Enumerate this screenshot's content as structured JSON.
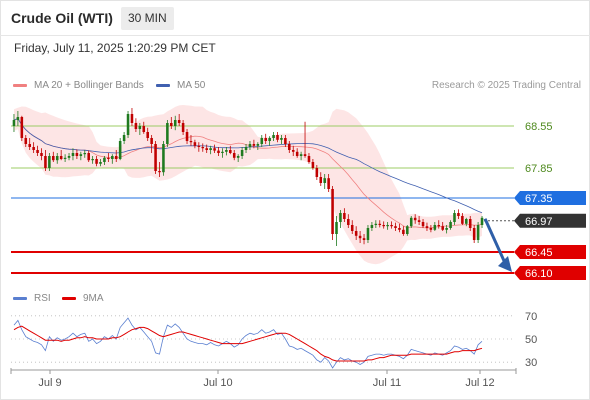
{
  "header": {
    "title": "Crude Oil (WTI)",
    "timeframe": "30 MIN"
  },
  "date_label": "Friday, July 11, 2025 1:20:29 PM CET",
  "legend": {
    "ma20": "MA 20 + Bollinger Bands",
    "ma50": "MA 50",
    "copyright": "Research © 2025 Trading Central"
  },
  "rsi_legend": {
    "rsi": "RSI",
    "ma9": "9MA"
  },
  "colors": {
    "up": "#1f7a1f",
    "down": "#c00000",
    "ma20": "#f08080",
    "ma50": "#4060b0",
    "band": "#fde0e0",
    "level_blue": "#1f6fe0",
    "level_red": "#e00000",
    "level_green": "#9ccc65",
    "current": "#333333"
  },
  "chart_data": [
    {
      "type": "candlestick",
      "title": "Crude Oil (WTI)",
      "interval": "30 MIN",
      "ylim": [
        65.95,
        69.05
      ],
      "x_ticks": [
        "Jul 9",
        "Jul 10",
        "Jul 11",
        "Jul 12"
      ],
      "levels": [
        {
          "value": 68.55,
          "label": "68.55",
          "style": "resistance-green"
        },
        {
          "value": 67.85,
          "label": "67.85",
          "style": "resistance-green"
        },
        {
          "value": 67.35,
          "label": "67.35",
          "style": "pivot-blue"
        },
        {
          "value": 66.45,
          "label": "66.45",
          "style": "support-red"
        },
        {
          "value": 66.1,
          "label": "66.10",
          "style": "support-red"
        }
      ],
      "current_price": {
        "value": 66.97,
        "label": "66.97"
      },
      "projection": {
        "from": 66.97,
        "to": 66.15,
        "direction": "down"
      },
      "candles": [
        [
          68.55,
          68.75,
          68.45,
          68.65
        ],
        [
          68.65,
          68.8,
          68.55,
          68.7
        ],
        [
          68.7,
          68.72,
          68.3,
          68.35
        ],
        [
          68.35,
          68.4,
          68.2,
          68.25
        ],
        [
          68.25,
          68.35,
          68.15,
          68.2
        ],
        [
          68.2,
          68.28,
          68.1,
          68.15
        ],
        [
          68.15,
          68.22,
          68.05,
          68.1
        ],
        [
          68.1,
          68.18,
          67.98,
          68.05
        ],
        [
          68.05,
          68.15,
          67.8,
          67.85
        ],
        [
          67.85,
          68.1,
          67.8,
          68.05
        ],
        [
          68.05,
          68.12,
          67.95,
          67.98
        ],
        [
          67.98,
          68.1,
          67.92,
          68.05
        ],
        [
          68.05,
          68.15,
          67.98,
          68.0
        ],
        [
          68.0,
          68.08,
          67.95,
          68.02
        ],
        [
          68.02,
          68.1,
          67.98,
          68.05
        ],
        [
          68.05,
          68.18,
          67.98,
          68.1
        ],
        [
          68.1,
          68.16,
          68.0,
          68.05
        ],
        [
          68.05,
          68.12,
          67.98,
          68.08
        ],
        [
          68.08,
          68.15,
          68.02,
          68.1
        ],
        [
          68.1,
          68.14,
          67.95,
          67.98
        ],
        [
          67.98,
          68.05,
          67.92,
          68.0
        ],
        [
          68.0,
          68.05,
          67.88,
          67.92
        ],
        [
          67.92,
          68.0,
          67.88,
          67.95
        ],
        [
          67.95,
          68.05,
          67.9,
          68.02
        ],
        [
          68.02,
          68.1,
          67.95,
          68.0
        ],
        [
          68.0,
          68.08,
          67.92,
          68.05
        ],
        [
          68.05,
          68.15,
          67.95,
          68.0
        ],
        [
          68.0,
          68.35,
          67.98,
          68.3
        ],
        [
          68.3,
          68.45,
          68.25,
          68.4
        ],
        [
          68.4,
          68.8,
          68.35,
          68.75
        ],
        [
          68.75,
          68.85,
          68.55,
          68.6
        ],
        [
          68.6,
          68.68,
          68.45,
          68.5
        ],
        [
          68.5,
          68.6,
          68.4,
          68.55
        ],
        [
          68.55,
          68.62,
          68.42,
          68.45
        ],
        [
          68.45,
          68.52,
          68.3,
          68.35
        ],
        [
          68.35,
          68.4,
          68.1,
          68.25
        ],
        [
          68.25,
          68.3,
          67.75,
          67.8
        ],
        [
          67.8,
          67.95,
          67.7,
          67.78
        ],
        [
          67.78,
          68.3,
          67.72,
          68.25
        ],
        [
          68.25,
          68.65,
          68.2,
          68.6
        ],
        [
          68.6,
          68.7,
          68.5,
          68.55
        ],
        [
          68.55,
          68.72,
          68.48,
          68.65
        ],
        [
          68.65,
          68.75,
          68.55,
          68.6
        ],
        [
          68.6,
          68.65,
          68.4,
          68.45
        ],
        [
          68.45,
          68.5,
          68.25,
          68.3
        ],
        [
          68.3,
          68.4,
          68.22,
          68.28
        ],
        [
          68.28,
          68.32,
          68.18,
          68.22
        ],
        [
          68.22,
          68.28,
          68.12,
          68.2
        ],
        [
          68.2,
          68.26,
          68.12,
          68.18
        ],
        [
          68.18,
          68.24,
          68.1,
          68.15
        ],
        [
          68.15,
          68.22,
          68.08,
          68.18
        ],
        [
          68.18,
          68.24,
          68.1,
          68.14
        ],
        [
          68.14,
          68.2,
          68.05,
          68.1
        ],
        [
          68.1,
          68.18,
          68.02,
          68.12
        ],
        [
          68.12,
          68.2,
          68.06,
          68.15
        ],
        [
          68.15,
          68.22,
          68.08,
          68.1
        ],
        [
          68.1,
          68.15,
          67.98,
          68.02
        ],
        [
          68.02,
          68.08,
          67.95,
          68.05
        ],
        [
          68.05,
          68.2,
          68.0,
          68.15
        ],
        [
          68.15,
          68.25,
          68.1,
          68.2
        ],
        [
          68.2,
          68.3,
          68.15,
          68.25
        ],
        [
          68.25,
          68.32,
          68.18,
          68.22
        ],
        [
          68.22,
          68.28,
          68.15,
          68.25
        ],
        [
          68.25,
          68.4,
          68.2,
          68.35
        ],
        [
          68.35,
          68.42,
          68.25,
          68.3
        ],
        [
          68.3,
          68.38,
          68.22,
          68.35
        ],
        [
          68.35,
          68.45,
          68.3,
          68.4
        ],
        [
          68.4,
          68.45,
          68.28,
          68.32
        ],
        [
          68.32,
          68.4,
          68.25,
          68.35
        ],
        [
          68.35,
          68.4,
          68.2,
          68.25
        ],
        [
          68.25,
          68.3,
          68.1,
          68.15
        ],
        [
          68.15,
          68.22,
          68.05,
          68.12
        ],
        [
          68.12,
          68.18,
          68.02,
          68.05
        ],
        [
          68.05,
          68.12,
          67.98,
          68.08
        ],
        [
          68.08,
          68.62,
          68.02,
          68.05
        ],
        [
          68.05,
          68.1,
          67.92,
          67.95
        ],
        [
          67.95,
          68.0,
          67.82,
          67.85
        ],
        [
          67.85,
          67.9,
          67.65,
          67.7
        ],
        [
          67.7,
          67.78,
          67.55,
          67.6
        ],
        [
          67.6,
          67.75,
          67.5,
          67.68
        ],
        [
          67.68,
          67.75,
          67.45,
          67.5
        ],
        [
          67.5,
          67.55,
          66.65,
          66.75
        ],
        [
          66.75,
          67.05,
          66.55,
          66.95
        ],
        [
          66.95,
          67.15,
          66.85,
          67.1
        ],
        [
          67.1,
          67.18,
          66.95,
          67.0
        ],
        [
          67.0,
          67.08,
          66.85,
          66.9
        ],
        [
          66.9,
          66.98,
          66.75,
          66.8
        ],
        [
          66.8,
          66.88,
          66.65,
          66.72
        ],
        [
          66.72,
          66.8,
          66.6,
          66.68
        ],
        [
          66.68,
          66.75,
          66.58,
          66.65
        ],
        [
          66.65,
          66.9,
          66.6,
          66.85
        ],
        [
          66.85,
          66.95,
          66.8,
          66.9
        ],
        [
          66.9,
          66.98,
          66.85,
          66.92
        ],
        [
          66.92,
          66.98,
          66.86,
          66.9
        ],
        [
          66.9,
          66.96,
          66.84,
          66.88
        ],
        [
          66.88,
          66.95,
          66.82,
          66.9
        ],
        [
          66.9,
          66.96,
          66.84,
          66.88
        ],
        [
          66.88,
          66.94,
          66.8,
          66.85
        ],
        [
          66.85,
          66.92,
          66.78,
          66.82
        ],
        [
          66.82,
          66.88,
          66.72,
          66.75
        ],
        [
          66.75,
          66.9,
          66.72,
          66.88
        ],
        [
          66.88,
          67.05,
          66.85,
          67.02
        ],
        [
          67.02,
          67.08,
          66.92,
          66.98
        ],
        [
          66.98,
          67.05,
          66.9,
          66.95
        ],
        [
          66.95,
          67.0,
          66.85,
          66.88
        ],
        [
          66.88,
          66.94,
          66.8,
          66.85
        ],
        [
          66.85,
          66.9,
          66.78,
          66.82
        ],
        [
          66.82,
          66.95,
          66.8,
          66.9
        ],
        [
          66.9,
          66.98,
          66.84,
          66.88
        ],
        [
          66.88,
          66.95,
          66.8,
          66.82
        ],
        [
          66.82,
          66.9,
          66.76,
          66.85
        ],
        [
          66.85,
          66.98,
          66.82,
          66.95
        ],
        [
          66.95,
          67.15,
          66.9,
          67.1
        ],
        [
          67.1,
          67.16,
          67.0,
          67.05
        ],
        [
          67.05,
          67.1,
          66.9,
          66.92
        ],
        [
          66.92,
          67.02,
          66.88,
          67.0
        ],
        [
          67.0,
          67.05,
          66.8,
          66.85
        ],
        [
          66.85,
          66.9,
          66.6,
          66.65
        ],
        [
          66.65,
          66.95,
          66.6,
          66.9
        ],
        [
          66.9,
          67.05,
          66.85,
          67.02
        ]
      ]
    },
    {
      "type": "line",
      "title": "RSI",
      "ylim": [
        25,
        75
      ],
      "y_ticks": [
        70,
        50,
        30
      ],
      "series": [
        {
          "name": "RSI",
          "values": [
            62,
            66,
            58,
            52,
            50,
            48,
            47,
            45,
            40,
            52,
            48,
            51,
            49,
            50,
            52,
            55,
            52,
            54,
            55,
            48,
            50,
            46,
            48,
            52,
            50,
            53,
            50,
            60,
            64,
            68,
            62,
            58,
            60,
            56,
            52,
            48,
            38,
            37,
            52,
            62,
            60,
            63,
            60,
            55,
            50,
            48,
            47,
            46,
            46,
            45,
            47,
            45,
            44,
            46,
            48,
            46,
            43,
            45,
            50,
            53,
            55,
            54,
            55,
            58,
            55,
            56,
            58,
            54,
            55,
            50,
            44,
            43,
            41,
            42,
            40,
            38,
            36,
            32,
            30,
            34,
            31,
            25,
            30,
            34,
            32,
            33,
            31,
            30,
            28,
            30,
            35,
            36,
            37,
            37,
            36,
            37,
            37,
            36,
            35,
            33,
            36,
            41,
            40,
            39,
            38,
            37,
            36,
            38,
            37,
            36,
            38,
            40,
            44,
            43,
            41,
            42,
            40,
            37,
            45,
            48
          ]
        },
        {
          "name": "9MA",
          "values": [
            58,
            60,
            61,
            59,
            57,
            55,
            53,
            51,
            49,
            49,
            49,
            49,
            48,
            49,
            49,
            50,
            51,
            51,
            52,
            51,
            51,
            50,
            50,
            50,
            50,
            51,
            51,
            52,
            54,
            56,
            58,
            59,
            60,
            60,
            59,
            57,
            55,
            53,
            52,
            53,
            54,
            55,
            56,
            56,
            55,
            54,
            53,
            52,
            51,
            50,
            49,
            48,
            47,
            46,
            46,
            46,
            46,
            46,
            46,
            47,
            48,
            49,
            50,
            51,
            52,
            53,
            54,
            55,
            55,
            55,
            54,
            52,
            50,
            48,
            46,
            44,
            42,
            40,
            37,
            35,
            34,
            32,
            31,
            31,
            31,
            31,
            31,
            31,
            31,
            31,
            32,
            32,
            33,
            34,
            34,
            35,
            36,
            36,
            36,
            36,
            36,
            37,
            37,
            37,
            37,
            37,
            37,
            37,
            37,
            37,
            37,
            38,
            39,
            39,
            40,
            40,
            40,
            40,
            41,
            42
          ]
        }
      ]
    }
  ]
}
